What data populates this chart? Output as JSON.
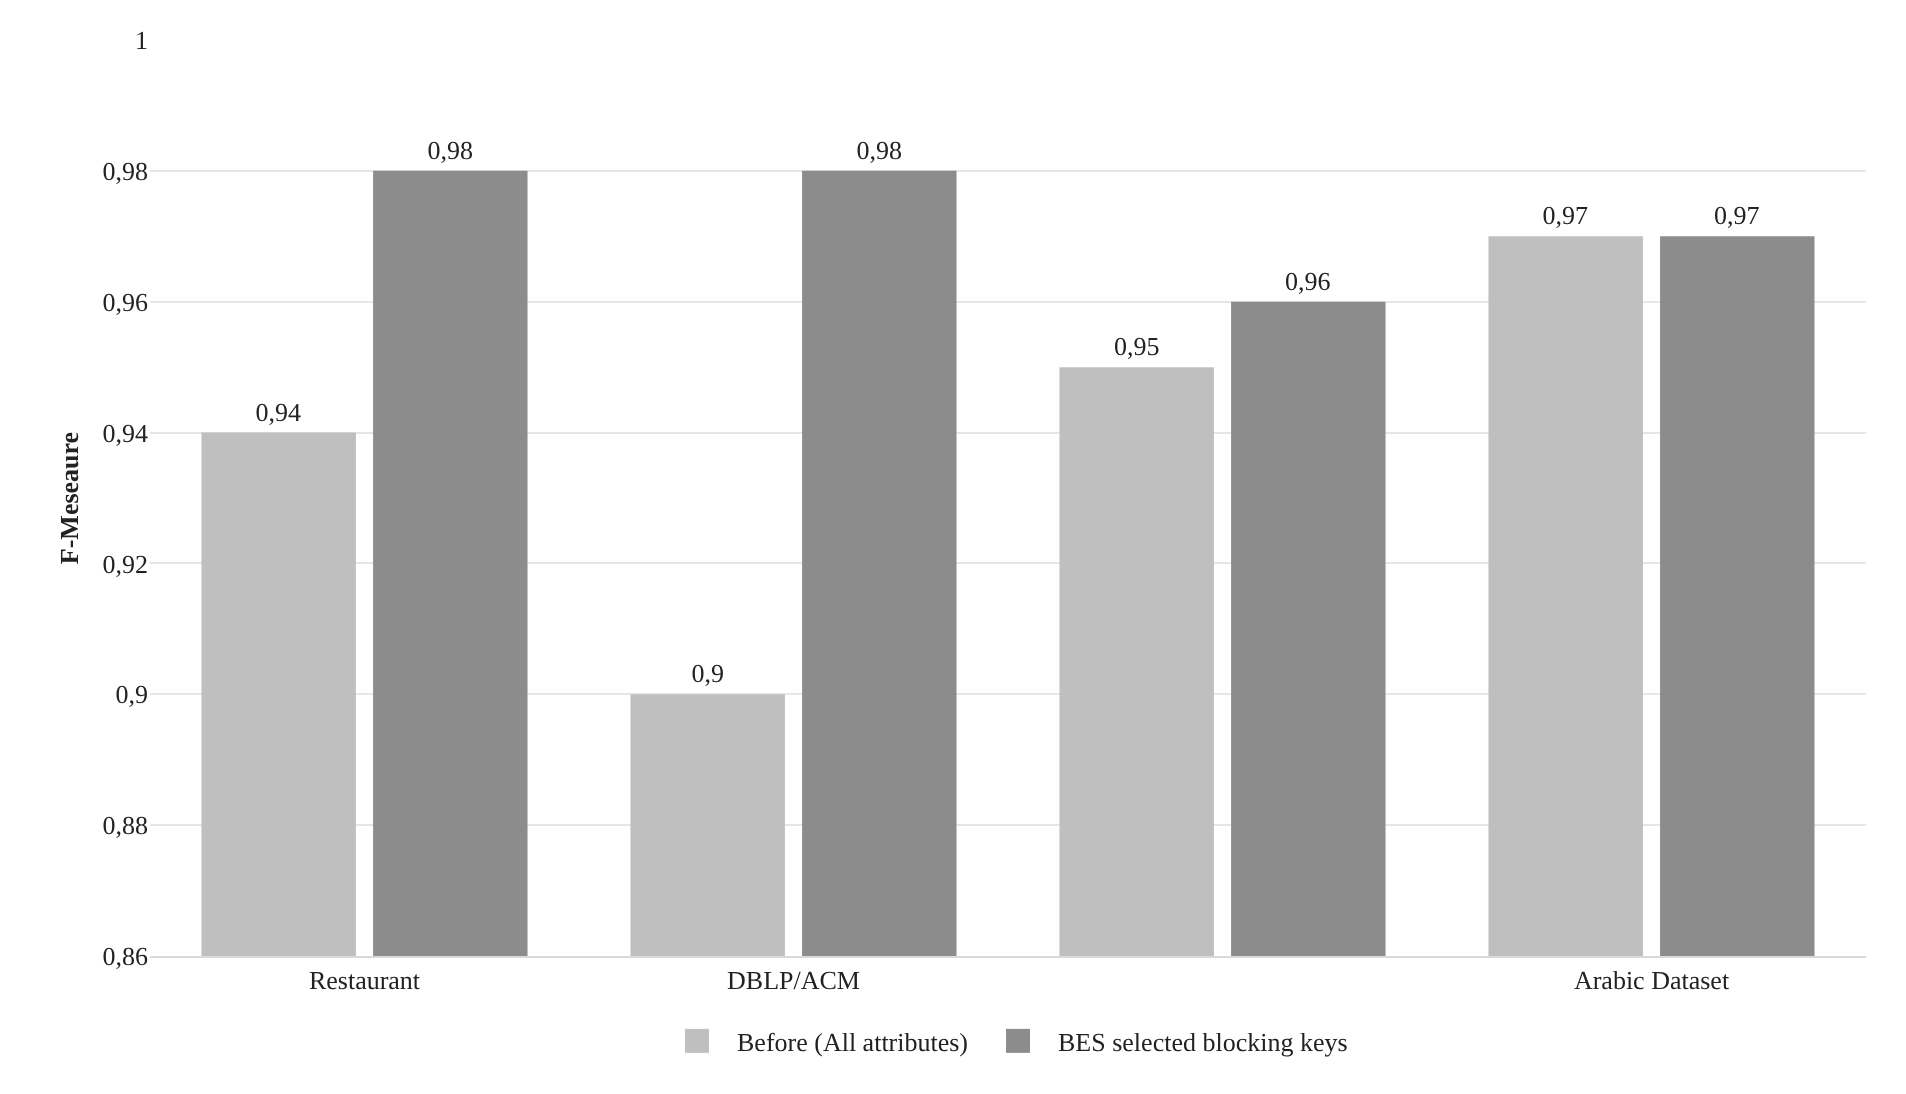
{
  "chart_data": {
    "type": "bar",
    "ylabel": "F-Meseaure",
    "categories": [
      "Restaurant",
      "DBLP/ACM",
      null,
      "Arabic Dataset"
    ],
    "series": [
      {
        "name": "Before (All attributes)",
        "color": "#bfbfbf",
        "values": [
          0.94,
          0.9,
          0.95,
          0.97
        ],
        "value_labels": [
          "0,94",
          "0,9",
          "0,95",
          "0,97"
        ]
      },
      {
        "name": "BES selected blocking keys",
        "color": "#8c8c8c",
        "values": [
          0.98,
          0.98,
          0.96,
          0.97
        ],
        "value_labels": [
          "0,98",
          "0,98",
          "0,96",
          "0,97"
        ]
      }
    ],
    "ylim": [
      0.86,
      1
    ],
    "yticks": [
      {
        "value": 0.86,
        "label": "0,86"
      },
      {
        "value": 0.88,
        "label": "0,88"
      },
      {
        "value": 0.9,
        "label": "0,9"
      },
      {
        "value": 0.92,
        "label": "0,92"
      },
      {
        "value": 0.94,
        "label": "0,94"
      },
      {
        "value": 0.96,
        "label": "0,96"
      },
      {
        "value": 0.98,
        "label": "0,98"
      },
      {
        "value": 1,
        "label": "1"
      }
    ],
    "grid": "y",
    "legend": "bottom"
  }
}
